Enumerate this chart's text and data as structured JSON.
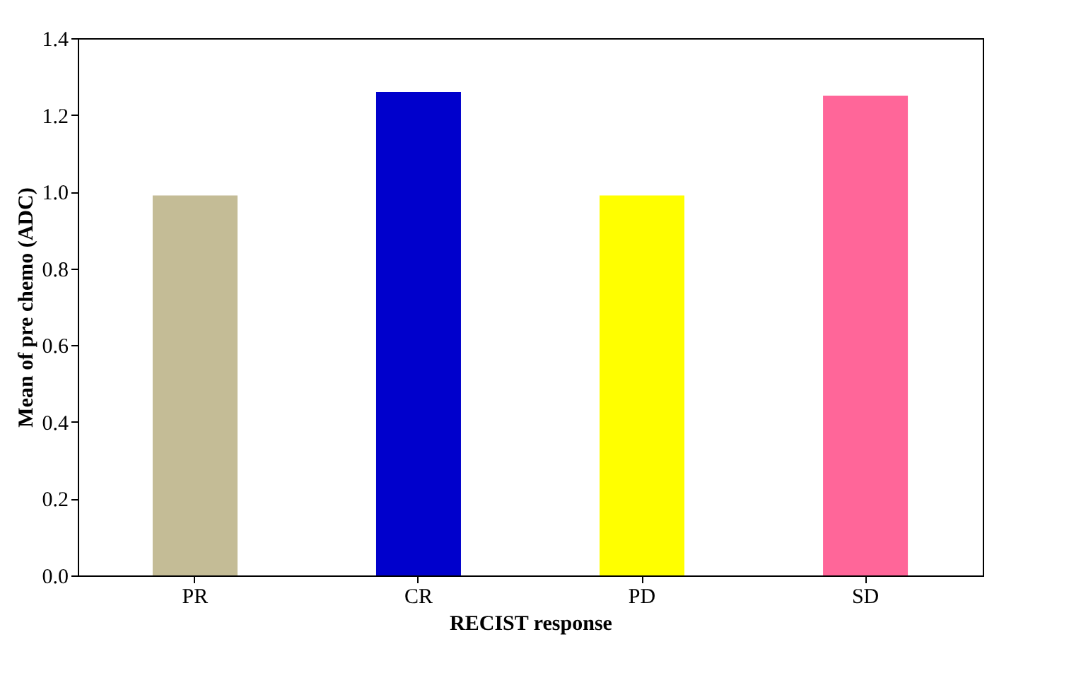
{
  "chart_data": {
    "type": "bar",
    "xlabel": "RECIST response",
    "ylabel": "Mean of pre chemo (ADC)",
    "categories": [
      "PR",
      "CR",
      "PD",
      "SD"
    ],
    "values": [
      0.99,
      1.26,
      0.99,
      1.25
    ],
    "colors": [
      "#c4bc96",
      "#0000cc",
      "#ffff00",
      "#ff6699"
    ],
    "ylim": [
      0,
      1.4
    ],
    "yticks": [
      {
        "value": 0,
        "label": "0.0"
      },
      {
        "value": 0.2,
        "label": "0.2"
      },
      {
        "value": 0.4,
        "label": "0.4"
      },
      {
        "value": 0.6,
        "label": "0.6"
      },
      {
        "value": 0.8,
        "label": "0.8"
      },
      {
        "value": 1,
        "label": "1.0"
      },
      {
        "value": 1.2,
        "label": "1.2"
      },
      {
        "value": 1.4,
        "label": "1.4"
      }
    ],
    "grid": false
  }
}
